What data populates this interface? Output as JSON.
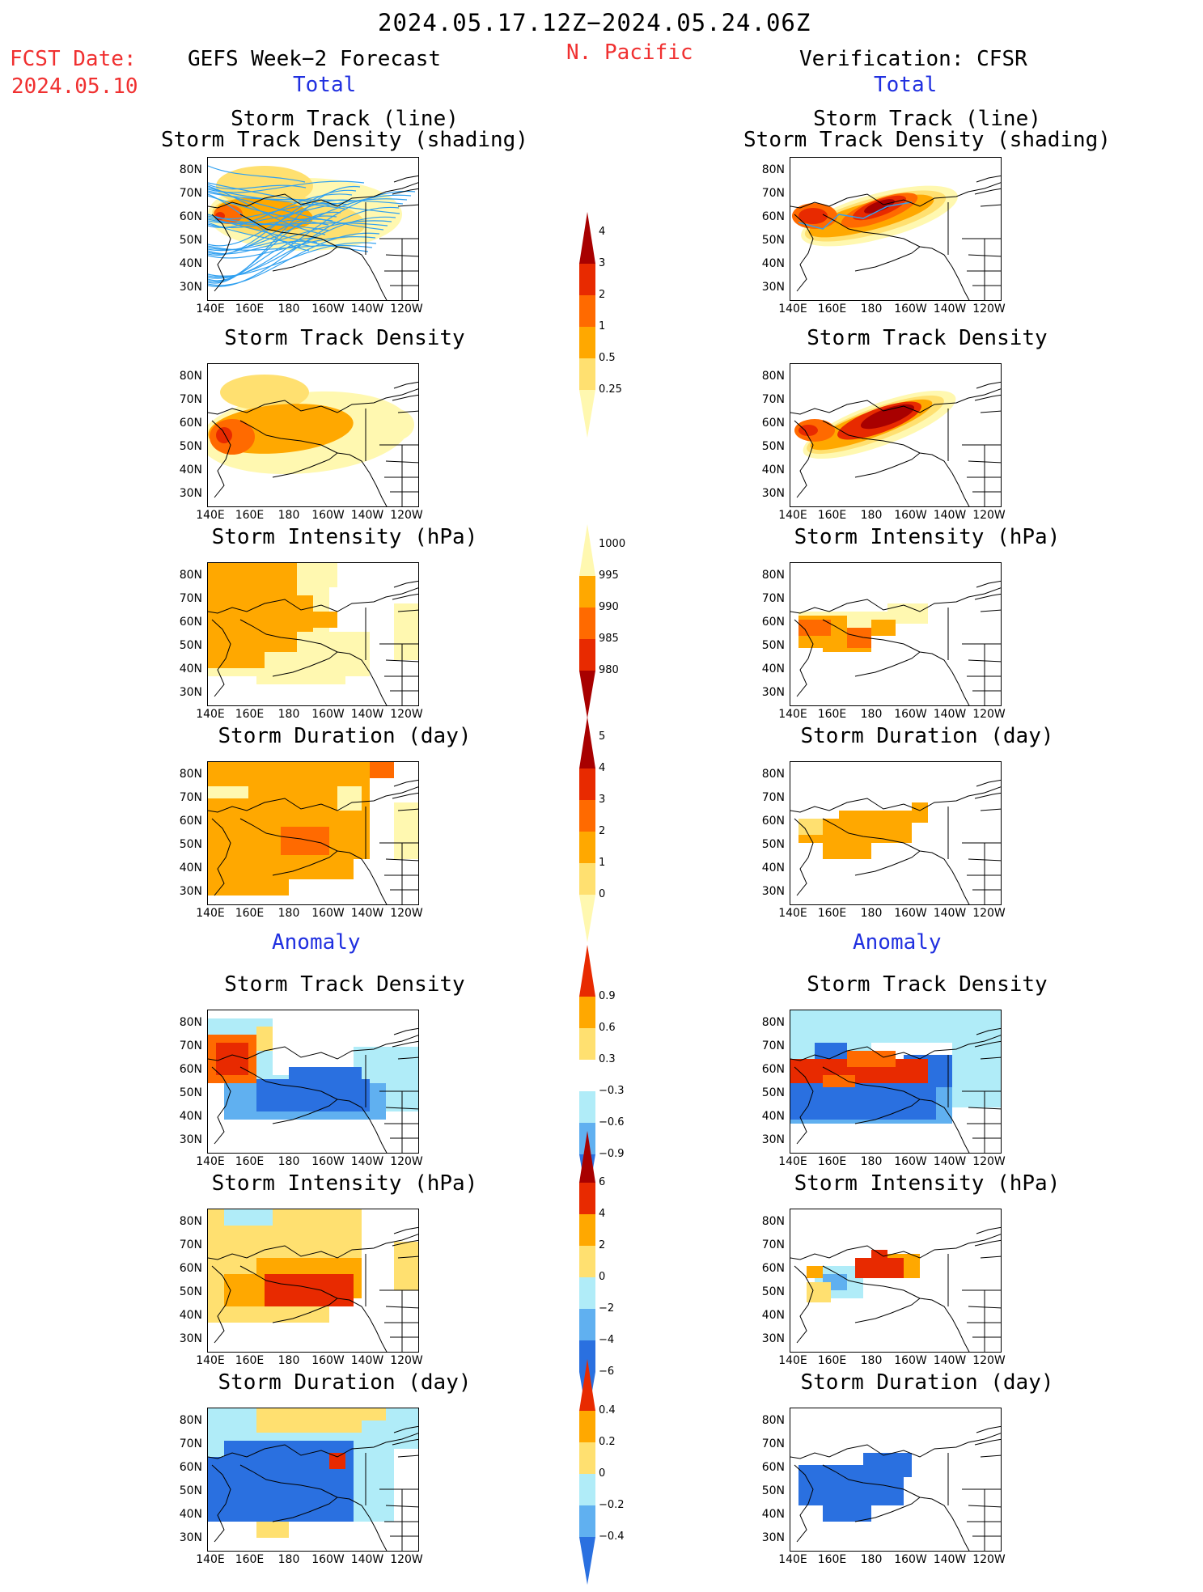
{
  "header": {
    "date_range": "2024.05.17.12Z−2024.05.24.06Z",
    "region": "N. Pacific",
    "fcst_label": "FCST Date:",
    "fcst_date": "2024.05.10",
    "left_model": "GEFS Week−2 Forecast",
    "right_model": "Verification: CFSR",
    "total_label": "Total",
    "anomaly_label": "Anomaly"
  },
  "axes": {
    "y_ticks": [
      "80N",
      "70N",
      "60N",
      "50N",
      "40N",
      "30N"
    ],
    "x_ticks": [
      "140E",
      "160E",
      "180",
      "160W",
      "140W",
      "120W"
    ]
  },
  "panel_titles": {
    "track_line": "Storm Track (line)",
    "track_shading": "Storm Track Density (shading)",
    "density": "Storm Track Density",
    "intensity": "Storm Intensity (hPa)",
    "duration": "Storm Duration (day)"
  },
  "colors": {
    "pale_yellow": "#fff8b0",
    "yellow": "#ffe070",
    "orange": "#ffa800",
    "dark_orange": "#ff6a00",
    "red": "#e82a00",
    "dark_red": "#a80000",
    "light_blue": "#b0ecf8",
    "mid_blue": "#60b0f0",
    "blue": "#2a70e0",
    "track_line": "#30a0f0"
  },
  "chart_data": [
    {
      "type": "heatmap",
      "panel": "forecast-total-track",
      "title": "Storm Track (line) / Storm Track Density (shading)",
      "colorbar": [
        0.25,
        0.5,
        1,
        2,
        3,
        4
      ]
    },
    {
      "type": "heatmap",
      "panel": "forecast-total-density",
      "title": "Storm Track Density",
      "colorbar": [
        0.25,
        0.5,
        1,
        2,
        3,
        4
      ]
    },
    {
      "type": "heatmap",
      "panel": "forecast-total-intensity",
      "title": "Storm Intensity (hPa)",
      "colorbar": [
        1000,
        995,
        990,
        985,
        980
      ]
    },
    {
      "type": "heatmap",
      "panel": "forecast-total-duration",
      "title": "Storm Duration (day)",
      "colorbar": [
        0,
        1,
        2,
        3,
        4,
        5
      ]
    },
    {
      "type": "heatmap",
      "panel": "forecast-anomaly-density",
      "title": "Storm Track Density",
      "colorbar": [
        -0.9,
        -0.6,
        -0.3,
        0.3,
        0.6,
        0.9
      ]
    },
    {
      "type": "heatmap",
      "panel": "forecast-anomaly-intensity",
      "title": "Storm Intensity (hPa)",
      "colorbar": [
        -6,
        -4,
        -2,
        0,
        2,
        4,
        6
      ]
    },
    {
      "type": "heatmap",
      "panel": "forecast-anomaly-duration",
      "title": "Storm Duration (day)",
      "colorbar": [
        -0.4,
        -0.2,
        0,
        0.2,
        0.4
      ]
    },
    {
      "type": "heatmap",
      "panel": "verification-total-track",
      "title": "Storm Track (line) / Storm Track Density (shading)",
      "colorbar": [
        0.25,
        0.5,
        1,
        2,
        3,
        4
      ]
    },
    {
      "type": "heatmap",
      "panel": "verification-total-density",
      "title": "Storm Track Density",
      "colorbar": [
        0.25,
        0.5,
        1,
        2,
        3,
        4
      ]
    },
    {
      "type": "heatmap",
      "panel": "verification-total-intensity",
      "title": "Storm Intensity (hPa)",
      "colorbar": [
        1000,
        995,
        990,
        985,
        980
      ]
    },
    {
      "type": "heatmap",
      "panel": "verification-total-duration",
      "title": "Storm Duration (day)",
      "colorbar": [
        0,
        1,
        2,
        3,
        4,
        5
      ]
    },
    {
      "type": "heatmap",
      "panel": "verification-anomaly-density",
      "title": "Storm Track Density",
      "colorbar": [
        -0.9,
        -0.6,
        -0.3,
        0.3,
        0.6,
        0.9
      ]
    },
    {
      "type": "heatmap",
      "panel": "verification-anomaly-intensity",
      "title": "Storm Intensity (hPa)",
      "colorbar": [
        -6,
        -4,
        -2,
        0,
        2,
        4,
        6
      ]
    },
    {
      "type": "heatmap",
      "panel": "verification-anomaly-duration",
      "title": "Storm Duration (day)",
      "colorbar": [
        -0.4,
        -0.2,
        0,
        0.2,
        0.4
      ]
    }
  ],
  "colorbars": {
    "density": [
      "4",
      "3",
      "2",
      "1",
      "0.5",
      "0.25"
    ],
    "intensity": [
      "1000",
      "995",
      "990",
      "985",
      "980"
    ],
    "duration": [
      "5",
      "4",
      "3",
      "2",
      "1",
      "0"
    ],
    "anom_density": [
      "0.9",
      "0.6",
      "0.3",
      "−0.3",
      "−0.6",
      "−0.9"
    ],
    "anom_intensity": [
      "6",
      "4",
      "2",
      "0",
      "−2",
      "−4",
      "−6"
    ],
    "anom_duration": [
      "0.4",
      "0.2",
      "0",
      "−0.2",
      "−0.4"
    ]
  }
}
